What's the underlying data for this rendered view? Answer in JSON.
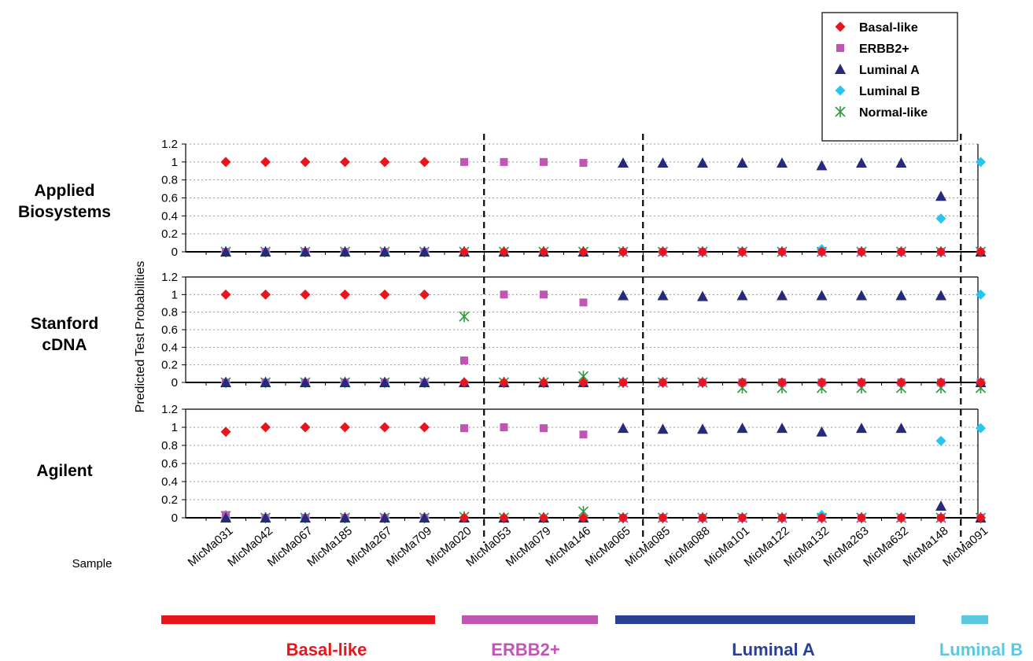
{
  "chart_data": {
    "type": "scatter",
    "ylabel": "Predicted Test Probabilities",
    "xlabel": "Sample",
    "yticks": [
      "1.2",
      "1",
      "0.8",
      "0.6",
      "0.4",
      "0.2",
      "0"
    ],
    "ylim": [
      0,
      1.2
    ],
    "grid": "horizontal dotted",
    "legend_position": "top-right",
    "categories": [
      "MicMa031",
      "MicMa042",
      "MicMa067",
      "MicMa185",
      "MicMa267",
      "MicMa709",
      "MicMa020",
      "MicMa053",
      "MicMa079",
      "MicMa146",
      "MicMa065",
      "MicMa085",
      "MicMa088",
      "MicMa101",
      "MicMa122",
      "MicMa132",
      "MicMa263",
      "MicMa632",
      "MicMa148",
      "MicMa091"
    ],
    "series": [
      {
        "name": "Basal-like",
        "marker": "diamond",
        "color": "#e8161c"
      },
      {
        "name": "ERBB2+",
        "marker": "square",
        "color": "#c055b3"
      },
      {
        "name": "Luminal A",
        "marker": "triangle",
        "color": "#262a7a"
      },
      {
        "name": "Luminal B",
        "marker": "diamond",
        "color": "#27c6ef"
      },
      {
        "name": "Normal-like",
        "marker": "asterisk",
        "color": "#2e9a3e"
      }
    ],
    "panels": [
      {
        "label_lines": [
          "Applied",
          "Biosystems"
        ],
        "values": {
          "Basal-like": [
            1,
            1,
            1,
            1,
            1,
            1,
            0,
            0,
            0,
            0,
            0,
            0,
            0,
            0,
            0,
            0,
            0,
            0,
            0,
            0
          ],
          "ERBB2+": [
            0,
            0,
            0,
            0,
            0,
            0,
            1,
            1,
            1,
            0.99,
            0,
            0,
            0,
            0,
            0,
            0,
            0,
            0,
            0,
            0
          ],
          "Luminal A": [
            0,
            0,
            0,
            0,
            0,
            0,
            0,
            0,
            0,
            0,
            0.99,
            0.99,
            0.99,
            0.99,
            0.99,
            0.96,
            0.99,
            0.99,
            0.62,
            0
          ],
          "Luminal B": [
            0,
            0,
            0,
            0,
            0,
            0,
            0,
            0,
            0,
            0,
            0,
            0,
            0,
            0,
            0,
            0.03,
            0,
            0,
            0.37,
            1
          ],
          "Normal-like": [
            0,
            0,
            0,
            0,
            0,
            0,
            0,
            0,
            0,
            0,
            0,
            0,
            0,
            0,
            0,
            0,
            0,
            0,
            0,
            0
          ]
        }
      },
      {
        "label_lines": [
          "Stanford",
          "cDNA"
        ],
        "values": {
          "Basal-like": [
            1,
            1,
            1,
            1,
            1,
            1,
            0,
            0,
            0,
            0,
            0,
            0,
            0,
            0,
            0,
            0,
            0,
            0,
            0,
            0
          ],
          "ERBB2+": [
            0,
            0,
            0,
            0,
            0,
            0,
            0.25,
            1,
            1,
            0.91,
            0,
            0,
            0,
            0,
            0,
            0,
            0,
            0,
            0,
            0
          ],
          "Luminal A": [
            0,
            0,
            0,
            0,
            0,
            0,
            0,
            0,
            0,
            0,
            0.99,
            0.99,
            0.98,
            0.99,
            0.99,
            0.99,
            0.99,
            0.99,
            0.99,
            0
          ],
          "Luminal B": [
            0,
            0,
            0,
            0,
            0,
            0,
            0,
            0,
            0,
            0,
            0,
            0,
            0,
            0,
            0,
            0,
            0,
            0,
            0,
            1
          ],
          "Normal-like": [
            0,
            0,
            0,
            0,
            0,
            0,
            0.75,
            0,
            0,
            0.07,
            0,
            0,
            0,
            -0.04,
            -0.03,
            -0.03,
            -0.03,
            -0.03,
            -0.03,
            -0.03
          ]
        }
      },
      {
        "label_lines": [
          "Agilent"
        ],
        "values": {
          "Basal-like": [
            0.95,
            1,
            1,
            1,
            1,
            1,
            0,
            0,
            0,
            0,
            0,
            0,
            0,
            0,
            0,
            0,
            0,
            0,
            0,
            0
          ],
          "ERBB2+": [
            0.03,
            0,
            0,
            0,
            0,
            0,
            0.99,
            1,
            0.99,
            0.92,
            0,
            0,
            0,
            0,
            0,
            0,
            0,
            0,
            0,
            0
          ],
          "Luminal A": [
            0,
            0,
            0,
            0,
            0,
            0,
            0,
            0,
            0,
            0,
            0.99,
            0.98,
            0.98,
            0.99,
            0.99,
            0.95,
            0.99,
            0.99,
            0.13,
            0
          ],
          "Luminal B": [
            0,
            0,
            0,
            0,
            0,
            0,
            0,
            0,
            0,
            0,
            0,
            0,
            0,
            0,
            0,
            0.03,
            0,
            0,
            0.85,
            0.99
          ],
          "Normal-like": [
            0.02,
            0,
            0,
            0,
            0,
            0,
            0.01,
            0,
            0,
            0.07,
            0,
            0,
            0,
            0,
            0,
            0,
            0,
            0,
            0,
            0
          ]
        }
      }
    ],
    "group_dividers_after_index": [
      6,
      10,
      18
    ],
    "groups": [
      {
        "label": "Basal-like",
        "color": "#e8161c",
        "from": 0,
        "to": 6
      },
      {
        "label": "ERBB2+",
        "color": "#c055b3",
        "from": 7,
        "to": 10
      },
      {
        "label": "Luminal A",
        "color": "#2b3f95",
        "from": 11,
        "to": 18
      },
      {
        "label": "Luminal B",
        "color": "#5bc8e0",
        "from": 19,
        "to": 19
      }
    ]
  }
}
